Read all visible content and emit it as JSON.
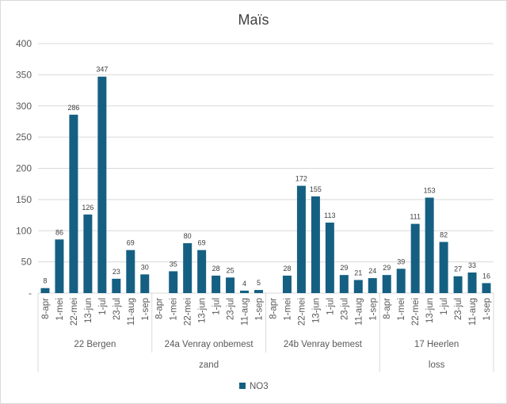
{
  "chart_data": {
    "type": "bar",
    "title": "Maïs",
    "xlabel": "",
    "ylabel": "",
    "ylim": [
      0,
      400
    ],
    "yticks": [
      "-",
      "50",
      "100",
      "150",
      "200",
      "250",
      "300",
      "350",
      "400"
    ],
    "ytick_values": [
      0,
      50,
      100,
      150,
      200,
      250,
      300,
      350,
      400
    ],
    "grid": true,
    "legend": {
      "position": "bottom",
      "entries": [
        "NO3"
      ]
    },
    "bar_color": "#156082",
    "dates": [
      "8-apr",
      "1-mei",
      "22-mei",
      "13-jun",
      "1-jul",
      "23-jul",
      "11-aug",
      "1-sep"
    ],
    "groups": [
      {
        "name": "22 Bergen",
        "soil": "zand",
        "values": [
          8,
          86,
          286,
          126,
          347,
          23,
          69,
          30
        ]
      },
      {
        "name": "24a Venray onbemest",
        "soil": "zand",
        "values": [
          null,
          35,
          80,
          69,
          28,
          25,
          4,
          5
        ]
      },
      {
        "name": "24b Venray bemest",
        "soil": "zand",
        "values": [
          null,
          28,
          172,
          155,
          113,
          29,
          21,
          24
        ]
      },
      {
        "name": "17 Heerlen",
        "soil": "loss",
        "values": [
          29,
          39,
          111,
          153,
          82,
          27,
          33,
          16
        ]
      }
    ],
    "soil_groups": [
      {
        "name": "zand",
        "span": 3
      },
      {
        "name": "loss",
        "span": 1
      }
    ],
    "series": [
      {
        "name": "NO3"
      }
    ]
  }
}
